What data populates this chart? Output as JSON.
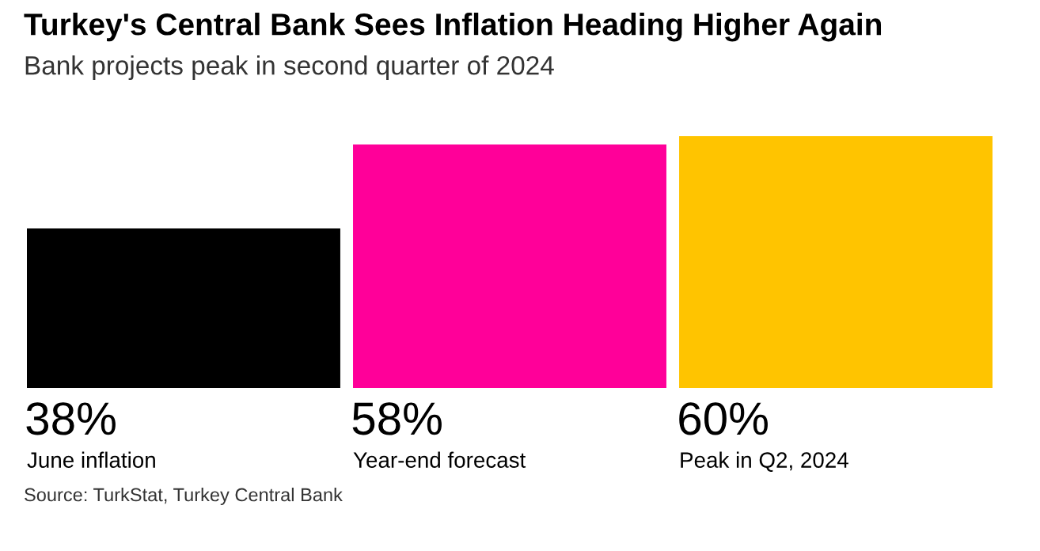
{
  "chart_data": {
    "type": "bar",
    "title": "Turkey's Central Bank Sees Inflation Heading Higher Again",
    "subtitle": "Bank projects peak in second quarter of 2024",
    "categories": [
      "June inflation",
      "Year-end forecast",
      "Peak in Q2, 2024"
    ],
    "values": [
      38,
      58,
      60
    ],
    "value_labels": [
      "38%",
      "58%",
      "60%"
    ],
    "colors": [
      "#000000",
      "#ff0099",
      "#ffc400"
    ],
    "annotations": [
      "Source: TurkStat, Turkey Central Bank"
    ]
  }
}
